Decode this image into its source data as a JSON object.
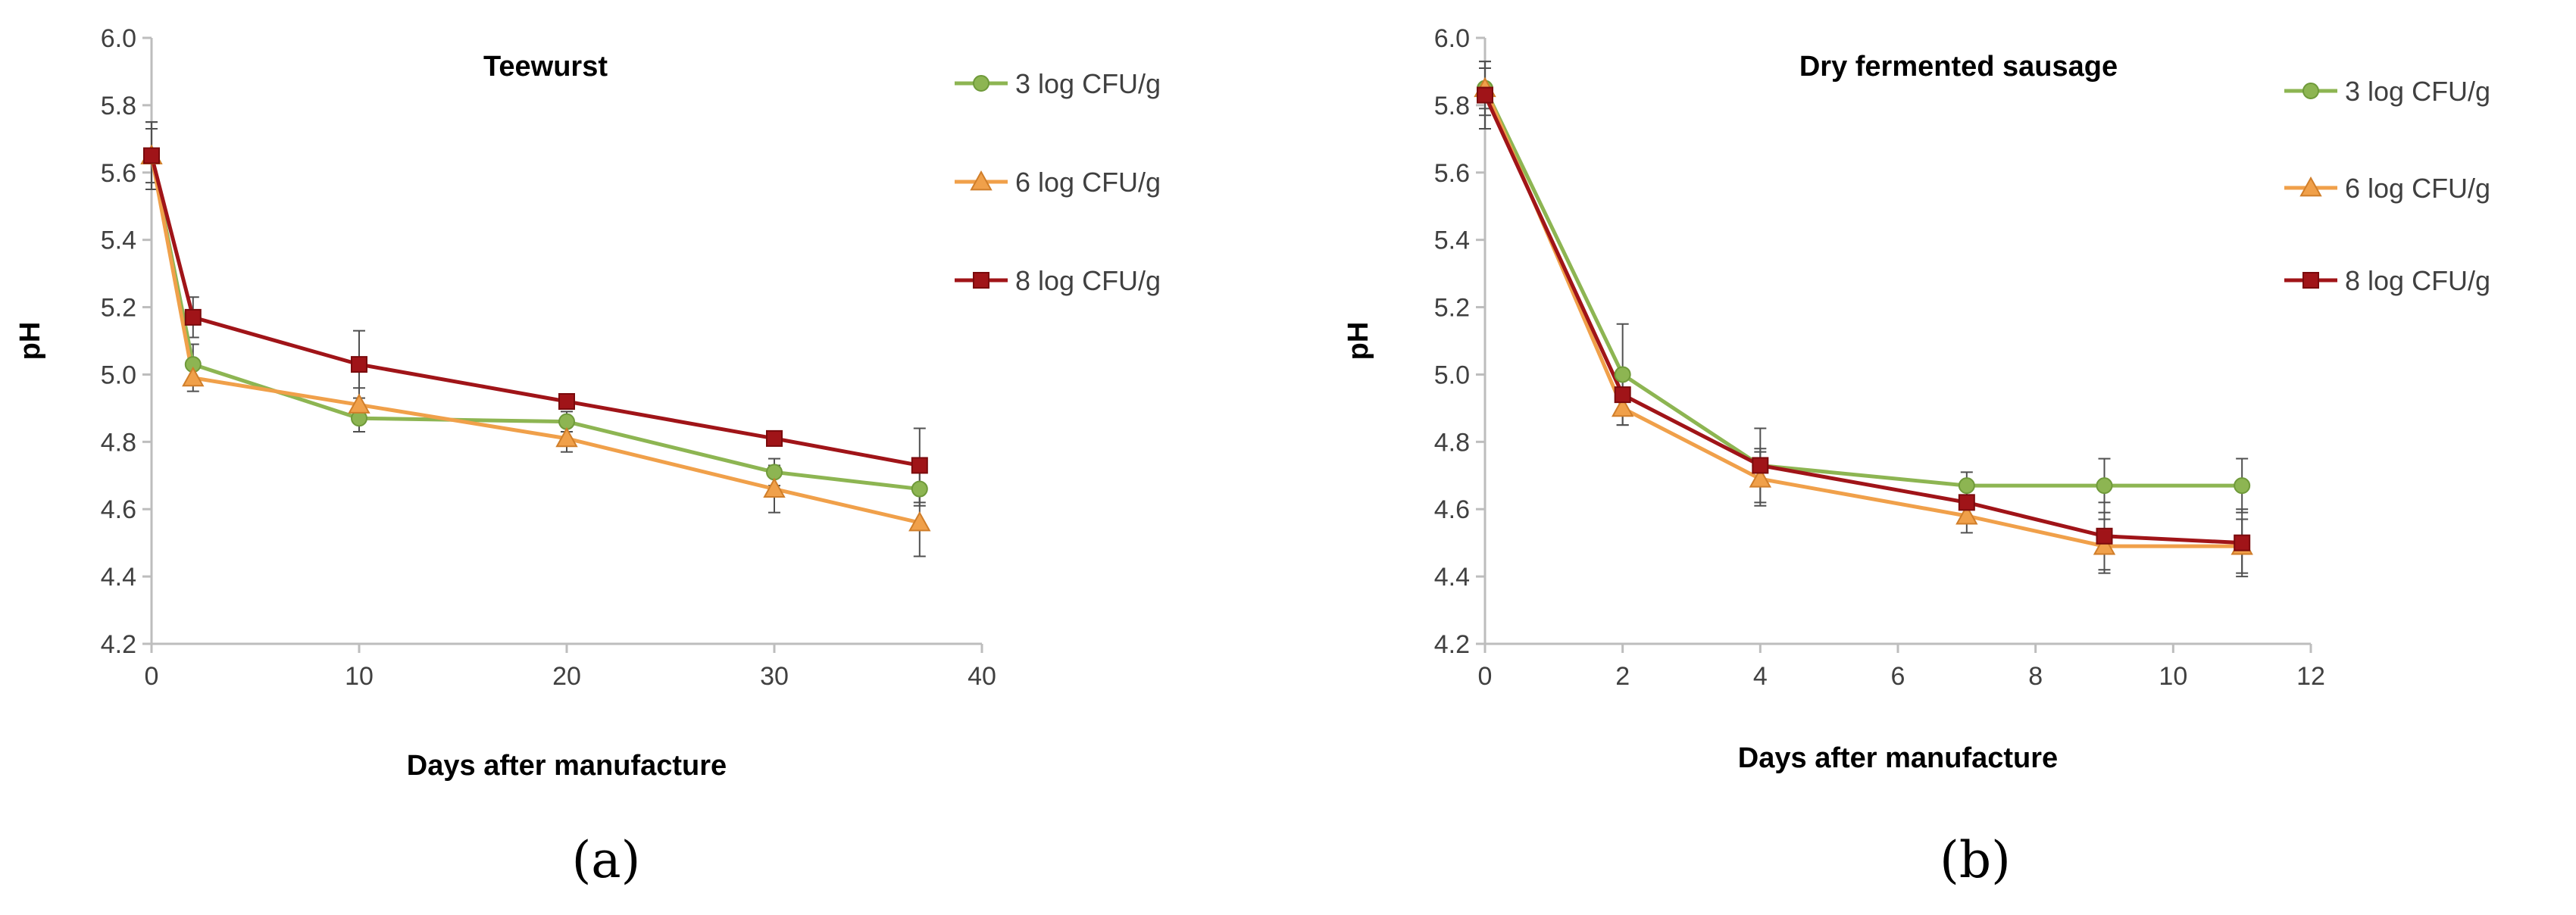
{
  "chart_data": [
    {
      "panel": "(a)",
      "type": "line",
      "title": "Teewurst",
      "xlabel": "Days after manufacture",
      "ylabel": "pH",
      "xlim": [
        0,
        40
      ],
      "ylim": [
        4.2,
        6.0
      ],
      "xticks": [
        0,
        10,
        20,
        30,
        40
      ],
      "xtick_labels": [
        "0",
        "10",
        "20",
        "30",
        "40"
      ],
      "yticks": [
        4.2,
        4.4,
        4.6,
        4.8,
        5.0,
        5.2,
        5.4,
        5.6,
        5.8,
        6.0
      ],
      "ytick_labels": [
        "4.2",
        "4.4",
        "4.6",
        "4.8",
        "5.0",
        "5.2",
        "5.4",
        "5.6",
        "5.8",
        "6.0"
      ],
      "grid": false,
      "legend_position": "right",
      "x": [
        0,
        2,
        10,
        20,
        30,
        37
      ],
      "series": [
        {
          "name": "3 log CFU/g",
          "color": "#8db552",
          "marker": "circle",
          "values": [
            5.65,
            5.03,
            4.87,
            4.86,
            4.71,
            4.66
          ],
          "errors": [
            0.1,
            0.06,
            0.04,
            0.03,
            0.04,
            0.05
          ]
        },
        {
          "name": "6 log CFU/g",
          "color": "#f0a04a",
          "marker": "triangle",
          "values": [
            5.65,
            4.99,
            4.91,
            4.81,
            4.66,
            4.56
          ],
          "errors": [
            0.08,
            0.04,
            0.05,
            0.04,
            0.07,
            0.1
          ]
        },
        {
          "name": "8 log CFU/g",
          "color": "#a01418",
          "marker": "square",
          "values": [
            5.65,
            5.17,
            5.03,
            4.92,
            4.81,
            4.73
          ],
          "errors": [
            0.1,
            0.06,
            0.1,
            0.02,
            0.02,
            0.11
          ]
        }
      ]
    },
    {
      "panel": "(b)",
      "type": "line",
      "title": "Dry fermented sausage",
      "xlabel": "Days after manufacture",
      "ylabel": "pH",
      "xlim": [
        0,
        12
      ],
      "ylim": [
        4.2,
        6.0
      ],
      "xticks": [
        0,
        2,
        4,
        6,
        8,
        10,
        12
      ],
      "xtick_labels": [
        "0",
        "2",
        "4",
        "6",
        "8",
        "10",
        "12"
      ],
      "yticks": [
        4.2,
        4.4,
        4.6,
        4.8,
        5.0,
        5.2,
        5.4,
        5.6,
        5.8,
        6.0
      ],
      "ytick_labels": [
        "4.2",
        "4.4",
        "4.6",
        "4.8",
        "5.0",
        "5.2",
        "5.4",
        "5.6",
        "5.8",
        "6.0"
      ],
      "grid": false,
      "legend_position": "right",
      "x": [
        0,
        2,
        4,
        7,
        9,
        11
      ],
      "series": [
        {
          "name": "3 log CFU/g",
          "color": "#8db552",
          "marker": "circle",
          "values": [
            5.85,
            5.0,
            4.73,
            4.67,
            4.67,
            4.67
          ],
          "errors": [
            0.08,
            0.15,
            0.11,
            0.04,
            0.08,
            0.08
          ]
        },
        {
          "name": "6 log CFU/g",
          "color": "#f0a04a",
          "marker": "triangle",
          "values": [
            5.85,
            4.9,
            4.69,
            4.58,
            4.49,
            4.49
          ],
          "errors": [
            0.06,
            0.05,
            0.08,
            0.05,
            0.08,
            0.08
          ]
        },
        {
          "name": "8 log CFU/g",
          "color": "#a01418",
          "marker": "square",
          "values": [
            5.83,
            4.94,
            4.73,
            4.62,
            4.52,
            4.5
          ],
          "errors": [
            0.1,
            0.05,
            0.05,
            0.04,
            0.1,
            0.1
          ]
        }
      ]
    }
  ]
}
